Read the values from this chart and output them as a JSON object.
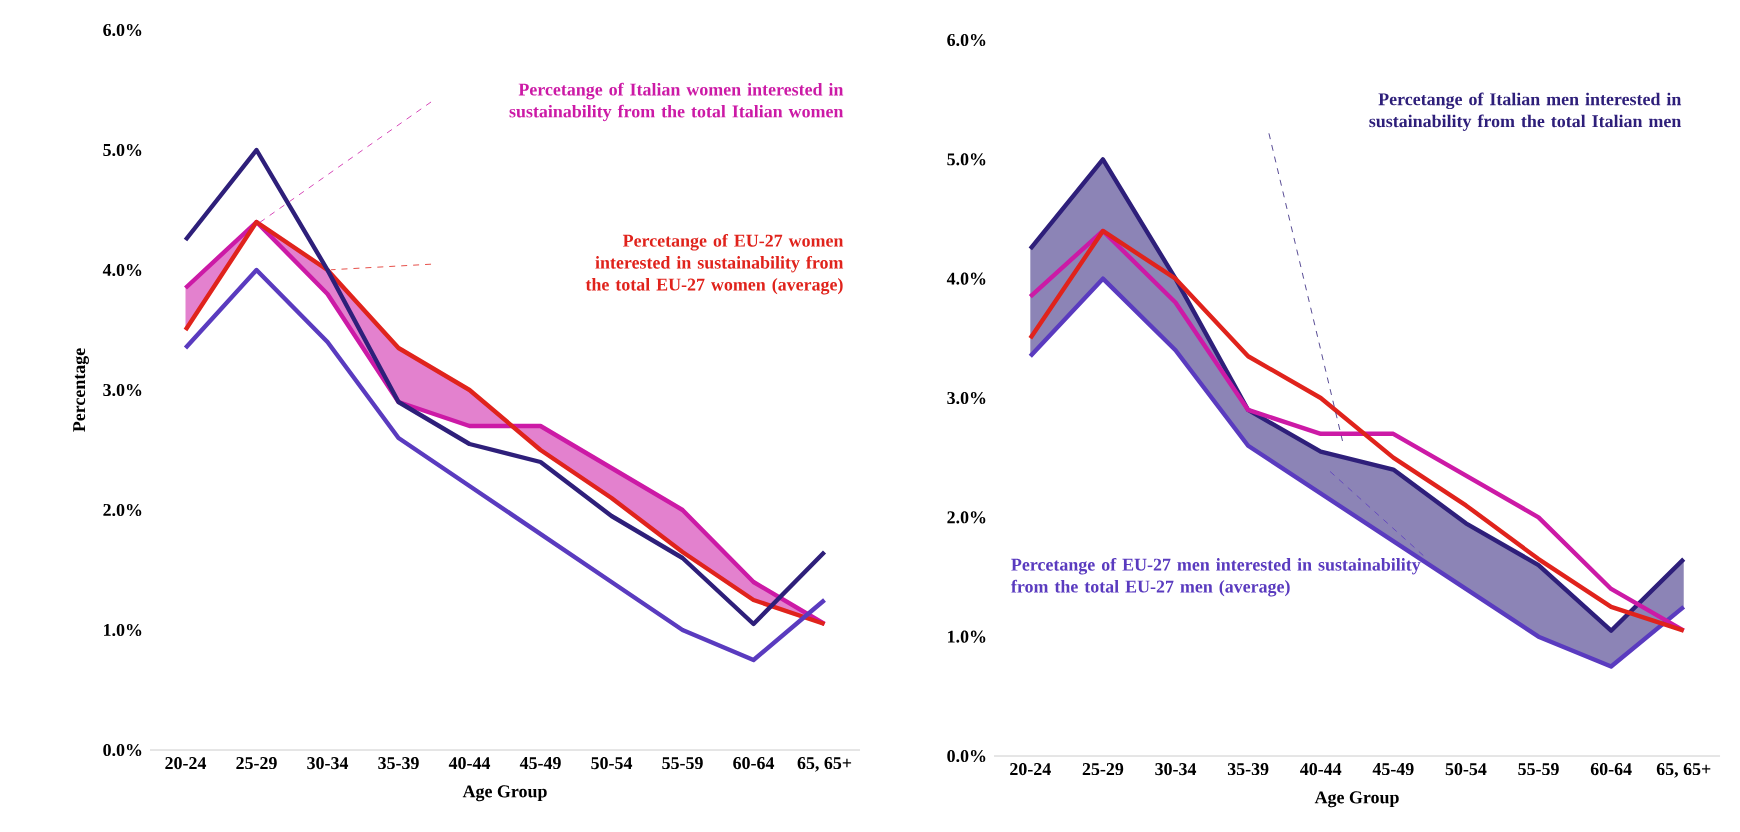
{
  "chart_data": [
    {
      "type": "line",
      "xlabel": "Age Group",
      "ylabel": "Percentage",
      "categories": [
        "20-24",
        "25-29",
        "30-34",
        "35-39",
        "40-44",
        "45-49",
        "50-54",
        "55-59",
        "60-64",
        "65, 65+"
      ],
      "series": [
        {
          "color": "#cc1aa6",
          "values": [
            3.85,
            4.4,
            3.8,
            2.9,
            2.7,
            2.7,
            2.35,
            2.0,
            1.4,
            1.05
          ],
          "lower": [
            3.5,
            4.4,
            4.0,
            3.35,
            3.0,
            2.5,
            2.1,
            1.65,
            1.25,
            1.05
          ],
          "upper": [
            3.85,
            4.4,
            3.8,
            2.9,
            2.7,
            2.7,
            2.35,
            2.0,
            1.4,
            1.05
          ]
        },
        {
          "color": "#e0231c",
          "values": [
            3.5,
            4.4,
            4.0,
            3.35,
            3.0,
            2.5,
            2.1,
            1.65,
            1.25,
            1.05
          ]
        },
        {
          "color": "#2e1f7a",
          "values": [
            4.25,
            5.0,
            4.0,
            2.9,
            2.55,
            2.4,
            1.95,
            1.6,
            1.05,
            1.65
          ]
        },
        {
          "color": "#5a3bbf",
          "values": [
            3.35,
            4.0,
            3.4,
            2.6,
            2.2,
            1.8,
            1.4,
            1.0,
            0.75,
            1.25
          ]
        }
      ],
      "ylim": [
        0,
        6
      ],
      "yticks": [
        {
          "value": 0,
          "label": "0.0%"
        },
        {
          "value": 1,
          "label": "1.0%"
        },
        {
          "value": 2,
          "label": "2.0%"
        },
        {
          "value": 3,
          "label": "3.0%"
        },
        {
          "value": 4,
          "label": "4.0%"
        },
        {
          "value": 5,
          "label": "5.0%"
        },
        {
          "value": 6,
          "label": "6.0%"
        }
      ],
      "annotations": [
        "Percetange of Italian women interested in sustainability from the total Italian women",
        "Percetange of EU-27 women interested in sustainability from the total EU-27 women (average)"
      ],
      "line_style": "solid",
      "marker": "none"
    },
    {
      "type": "line",
      "xlabel": "Age Group",
      "categories": [
        "20-24",
        "25-29",
        "30-34",
        "35-39",
        "40-44",
        "45-49",
        "50-54",
        "55-59",
        "60-64",
        "65, 65+"
      ],
      "series": [
        {
          "color": "#2e1f7a",
          "values": [
            4.25,
            5.0,
            4.0,
            2.9,
            2.55,
            2.4,
            1.95,
            1.6,
            1.05,
            1.65
          ],
          "lower": [
            3.35,
            4.0,
            3.4,
            2.6,
            2.2,
            1.8,
            1.4,
            1.0,
            0.75,
            1.25
          ],
          "upper": [
            4.25,
            5.0,
            4.0,
            2.9,
            2.55,
            2.4,
            1.95,
            1.6,
            1.05,
            1.65
          ]
        },
        {
          "color": "#5a3bbf",
          "values": [
            3.35,
            4.0,
            3.4,
            2.6,
            2.2,
            1.8,
            1.4,
            1.0,
            0.75,
            1.25
          ]
        },
        {
          "color": "#cc1aa6",
          "values": [
            3.85,
            4.4,
            3.8,
            2.9,
            2.7,
            2.7,
            2.35,
            2.0,
            1.4,
            1.05
          ]
        },
        {
          "color": "#e0231c",
          "values": [
            3.5,
            4.4,
            4.0,
            3.35,
            3.0,
            2.5,
            2.1,
            1.65,
            1.25,
            1.05
          ]
        }
      ],
      "ylim": [
        0,
        6
      ],
      "yticks": [
        {
          "value": 0,
          "label": "0.0%"
        },
        {
          "value": 1,
          "label": "1.0%"
        },
        {
          "value": 2,
          "label": "2.0%"
        },
        {
          "value": 3,
          "label": "3.0%"
        },
        {
          "value": 4,
          "label": "4.0%"
        },
        {
          "value": 5,
          "label": "5.0%"
        },
        {
          "value": 6,
          "label": "6.0%"
        }
      ],
      "annotations": [
        "Percetange of Italian men interested in sustainability from the total Italian men",
        "Percetange of EU-27 men interested in sustainability from the total EU-27 men (average)"
      ],
      "line_style": "solid",
      "marker": "none"
    }
  ]
}
